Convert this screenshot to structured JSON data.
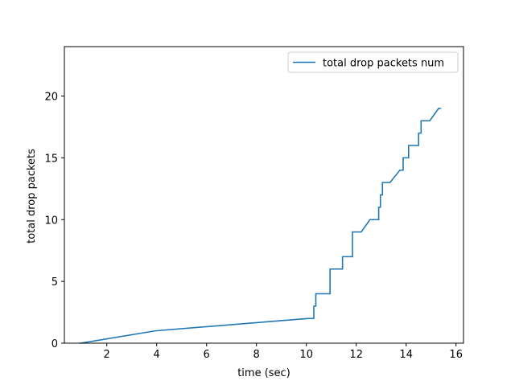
{
  "chart_data": {
    "type": "line",
    "title": "",
    "xlabel": "time (sec)",
    "ylabel": "total drop packets",
    "xlim": [
      0.3,
      16.3
    ],
    "ylim": [
      0,
      24
    ],
    "x_ticks": [
      2,
      4,
      6,
      8,
      10,
      12,
      14,
      16
    ],
    "y_ticks": [
      0,
      5,
      10,
      15,
      20
    ],
    "grid": false,
    "legend_position": "upper right",
    "series": [
      {
        "name": "total drop packets num",
        "color": "#1f77b4",
        "points": [
          [
            0.95,
            0
          ],
          [
            3.95,
            1
          ],
          [
            10.05,
            2
          ],
          [
            10.3,
            2
          ],
          [
            10.3,
            3
          ],
          [
            10.38,
            3
          ],
          [
            10.38,
            4
          ],
          [
            10.95,
            4
          ],
          [
            10.95,
            6
          ],
          [
            11.45,
            6
          ],
          [
            11.45,
            7
          ],
          [
            11.85,
            7
          ],
          [
            11.85,
            9
          ],
          [
            12.2,
            9
          ],
          [
            12.55,
            10
          ],
          [
            12.9,
            10
          ],
          [
            12.9,
            11
          ],
          [
            12.97,
            11
          ],
          [
            12.97,
            12
          ],
          [
            13.05,
            12
          ],
          [
            13.05,
            13
          ],
          [
            13.35,
            13
          ],
          [
            13.75,
            14
          ],
          [
            13.88,
            14
          ],
          [
            13.88,
            15
          ],
          [
            14.1,
            15
          ],
          [
            14.1,
            16
          ],
          [
            14.5,
            16
          ],
          [
            14.5,
            17
          ],
          [
            14.6,
            17
          ],
          [
            14.6,
            18
          ],
          [
            14.95,
            18
          ],
          [
            15.3,
            19
          ],
          [
            15.38,
            19
          ]
        ]
      }
    ]
  }
}
